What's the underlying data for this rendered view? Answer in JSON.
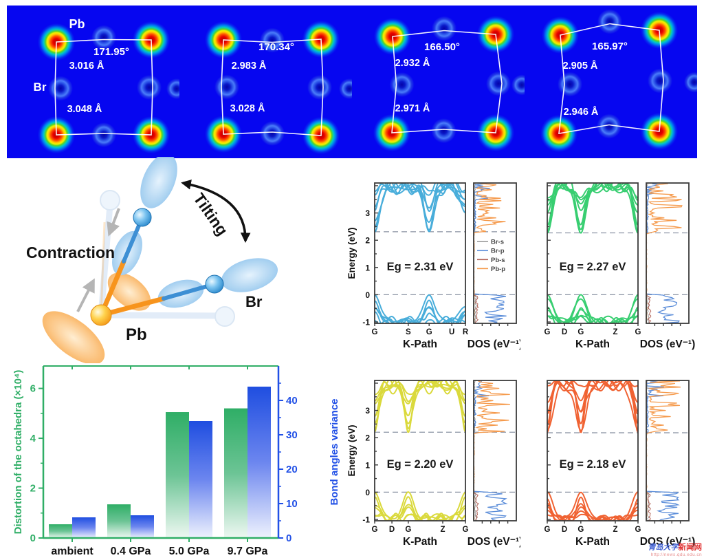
{
  "top_strip": {
    "atom_labels": {
      "pb": "Pb",
      "br": "Br"
    },
    "background": "#0606f0",
    "panels": [
      {
        "angle": "171.95°",
        "bond_top": "3.016 Å",
        "bond_bottom": "3.048 Å"
      },
      {
        "angle": "170.34°",
        "bond_top": "2.983 Å",
        "bond_bottom": "3.028 Å"
      },
      {
        "angle": "166.50°",
        "bond_top": "2.932 Å",
        "bond_bottom": "2.971 Å"
      },
      {
        "angle": "165.97°",
        "bond_top": "2.905 Å",
        "bond_bottom": "2.946 Å"
      }
    ]
  },
  "mechanism_diagram": {
    "contraction_label": "Contraction",
    "tilting_label": "Tilting",
    "pb_label": "Pb",
    "br_label": "Br",
    "colors": {
      "pb_bond": "#f7941d",
      "br_bond": "#3d8fd4"
    }
  },
  "chart_data": [
    {
      "type": "bar",
      "name": "octahedra-distortion-chart",
      "categories": [
        "ambient",
        "0.4 GPa",
        "5.0 GPa",
        "9.7 GPa"
      ],
      "series": [
        {
          "name": "Distortion of the octahedra (×10⁴)",
          "axis": "left",
          "color": "#2fae66",
          "values": [
            0.55,
            1.35,
            5.05,
            5.2
          ]
        },
        {
          "name": "Bond angles variance",
          "axis": "right",
          "color": "#2150e6",
          "values": [
            6,
            6.6,
            34,
            44
          ]
        }
      ],
      "left_axis": {
        "label": "Distortion of the octahedra (×10⁴)",
        "ticks": [
          0,
          2,
          4,
          6
        ],
        "minor_ticks": [
          1,
          3,
          5
        ],
        "range": [
          0,
          6.9
        ],
        "color": "#2fae66"
      },
      "right_axis": {
        "label": "Bond angles variance",
        "ticks": [
          0,
          10,
          20,
          30,
          40
        ],
        "minor_ticks": [
          5,
          15,
          25,
          35,
          45
        ],
        "range": [
          0,
          50
        ],
        "color": "#2150e6"
      },
      "grid": false
    },
    {
      "type": "line",
      "name": "band-structure-ambient",
      "band_color": "#3fa9d9",
      "eg_ev": 2.31,
      "eg_label": "Eg = 2.31 eV",
      "k_ticks": [
        "G",
        "S",
        "G",
        "U",
        "R"
      ],
      "k_positions": [
        0,
        0.37,
        0.6,
        0.85,
        1
      ],
      "xlabel": "K-Path",
      "dos_label": "DOS (eV⁻¹)",
      "ylabel": "Energy (eV)",
      "yticks": [
        -1,
        0,
        1,
        2,
        3
      ],
      "ylim": [
        -1.05,
        4.1
      ],
      "show_y_axis": true,
      "dos_legend": [
        {
          "label": "Br-s",
          "color": "#9a9a9a"
        },
        {
          "label": "Br-p",
          "color": "#5b8dd9"
        },
        {
          "label": "Pb-s",
          "color": "#b06055"
        },
        {
          "label": "Pb-p",
          "color": "#f59a4c"
        }
      ]
    },
    {
      "type": "line",
      "name": "band-structure-0.4GPa",
      "band_color": "#2ecc6a",
      "eg_ev": 2.27,
      "eg_label": "Eg = 2.27 eV",
      "k_ticks": [
        "G",
        "D",
        "G",
        "Z",
        "G"
      ],
      "k_positions": [
        0,
        0.19,
        0.37,
        0.75,
        1
      ],
      "xlabel": "K-Path",
      "dos_label": "DOS (eV⁻¹)",
      "ylabel": "Energy (eV)",
      "yticks": [],
      "ylim": [
        -1.05,
        4.1
      ],
      "show_y_axis": false
    },
    {
      "type": "line",
      "name": "band-structure-5.0GPa",
      "band_color": "#d9d832",
      "eg_ev": 2.2,
      "eg_label": "Eg = 2.20 eV",
      "k_ticks": [
        "G",
        "D",
        "G",
        "Z",
        "G"
      ],
      "k_positions": [
        0,
        0.19,
        0.37,
        0.75,
        1
      ],
      "xlabel": "K-Path",
      "dos_label": "DOS (eV⁻¹)",
      "ylabel": "Energy (eV)",
      "yticks": [
        -1,
        0,
        1,
        2,
        3
      ],
      "ylim": [
        -1.05,
        4.1
      ],
      "show_y_axis": true
    },
    {
      "type": "line",
      "name": "band-structure-9.7GPa",
      "band_color": "#f05a28",
      "eg_ev": 2.18,
      "eg_label": "Eg = 2.18 eV",
      "k_ticks": [
        "G",
        "D",
        "G",
        "Z",
        "G"
      ],
      "k_positions": [
        0,
        0.19,
        0.37,
        0.75,
        1
      ],
      "xlabel": "K-Path",
      "dos_label": "DOS (eV⁻¹)",
      "ylabel": "Energy (eV)",
      "yticks": [],
      "ylim": [
        -1.05,
        4.1
      ],
      "show_y_axis": false
    }
  ],
  "watermark": {
    "site_name_blue": "青岛大学",
    "site_name_red": "新闻网",
    "url": "http://news.qdu.edu.cn"
  }
}
